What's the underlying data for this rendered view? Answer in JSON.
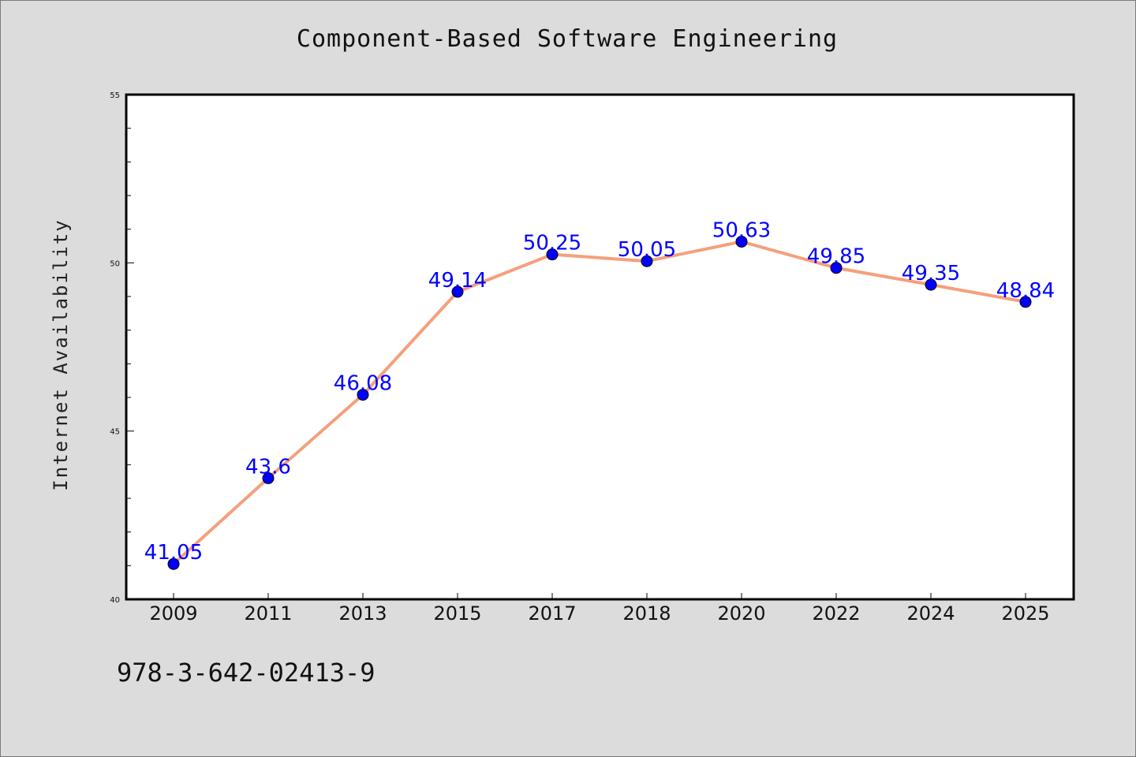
{
  "chart_data": {
    "type": "line",
    "title": "Component-Based Software Engineering",
    "ylabel": "Internet Availability",
    "xlabel": "",
    "categories": [
      "2009",
      "2011",
      "2013",
      "2015",
      "2017",
      "2018",
      "2020",
      "2022",
      "2024",
      "2025"
    ],
    "series": [
      {
        "values": [
          41.05,
          43.6,
          46.08,
          49.14,
          50.25,
          50.05,
          50.63,
          49.85,
          49.35,
          48.84
        ],
        "data_labels": [
          "41.05",
          "43.6",
          "46.08",
          "49.14",
          "50.25",
          "50.05",
          "50.63",
          "49.85",
          "49.35",
          "48.84"
        ],
        "line_color": "#f4a07c",
        "marker_color": "#0000ff"
      }
    ],
    "ylim": [
      40,
      55
    ],
    "yticks": [
      "40",
      "45",
      "50",
      "55"
    ],
    "grid": false
  },
  "footer": {
    "code": "978-3-642-02413-9"
  }
}
